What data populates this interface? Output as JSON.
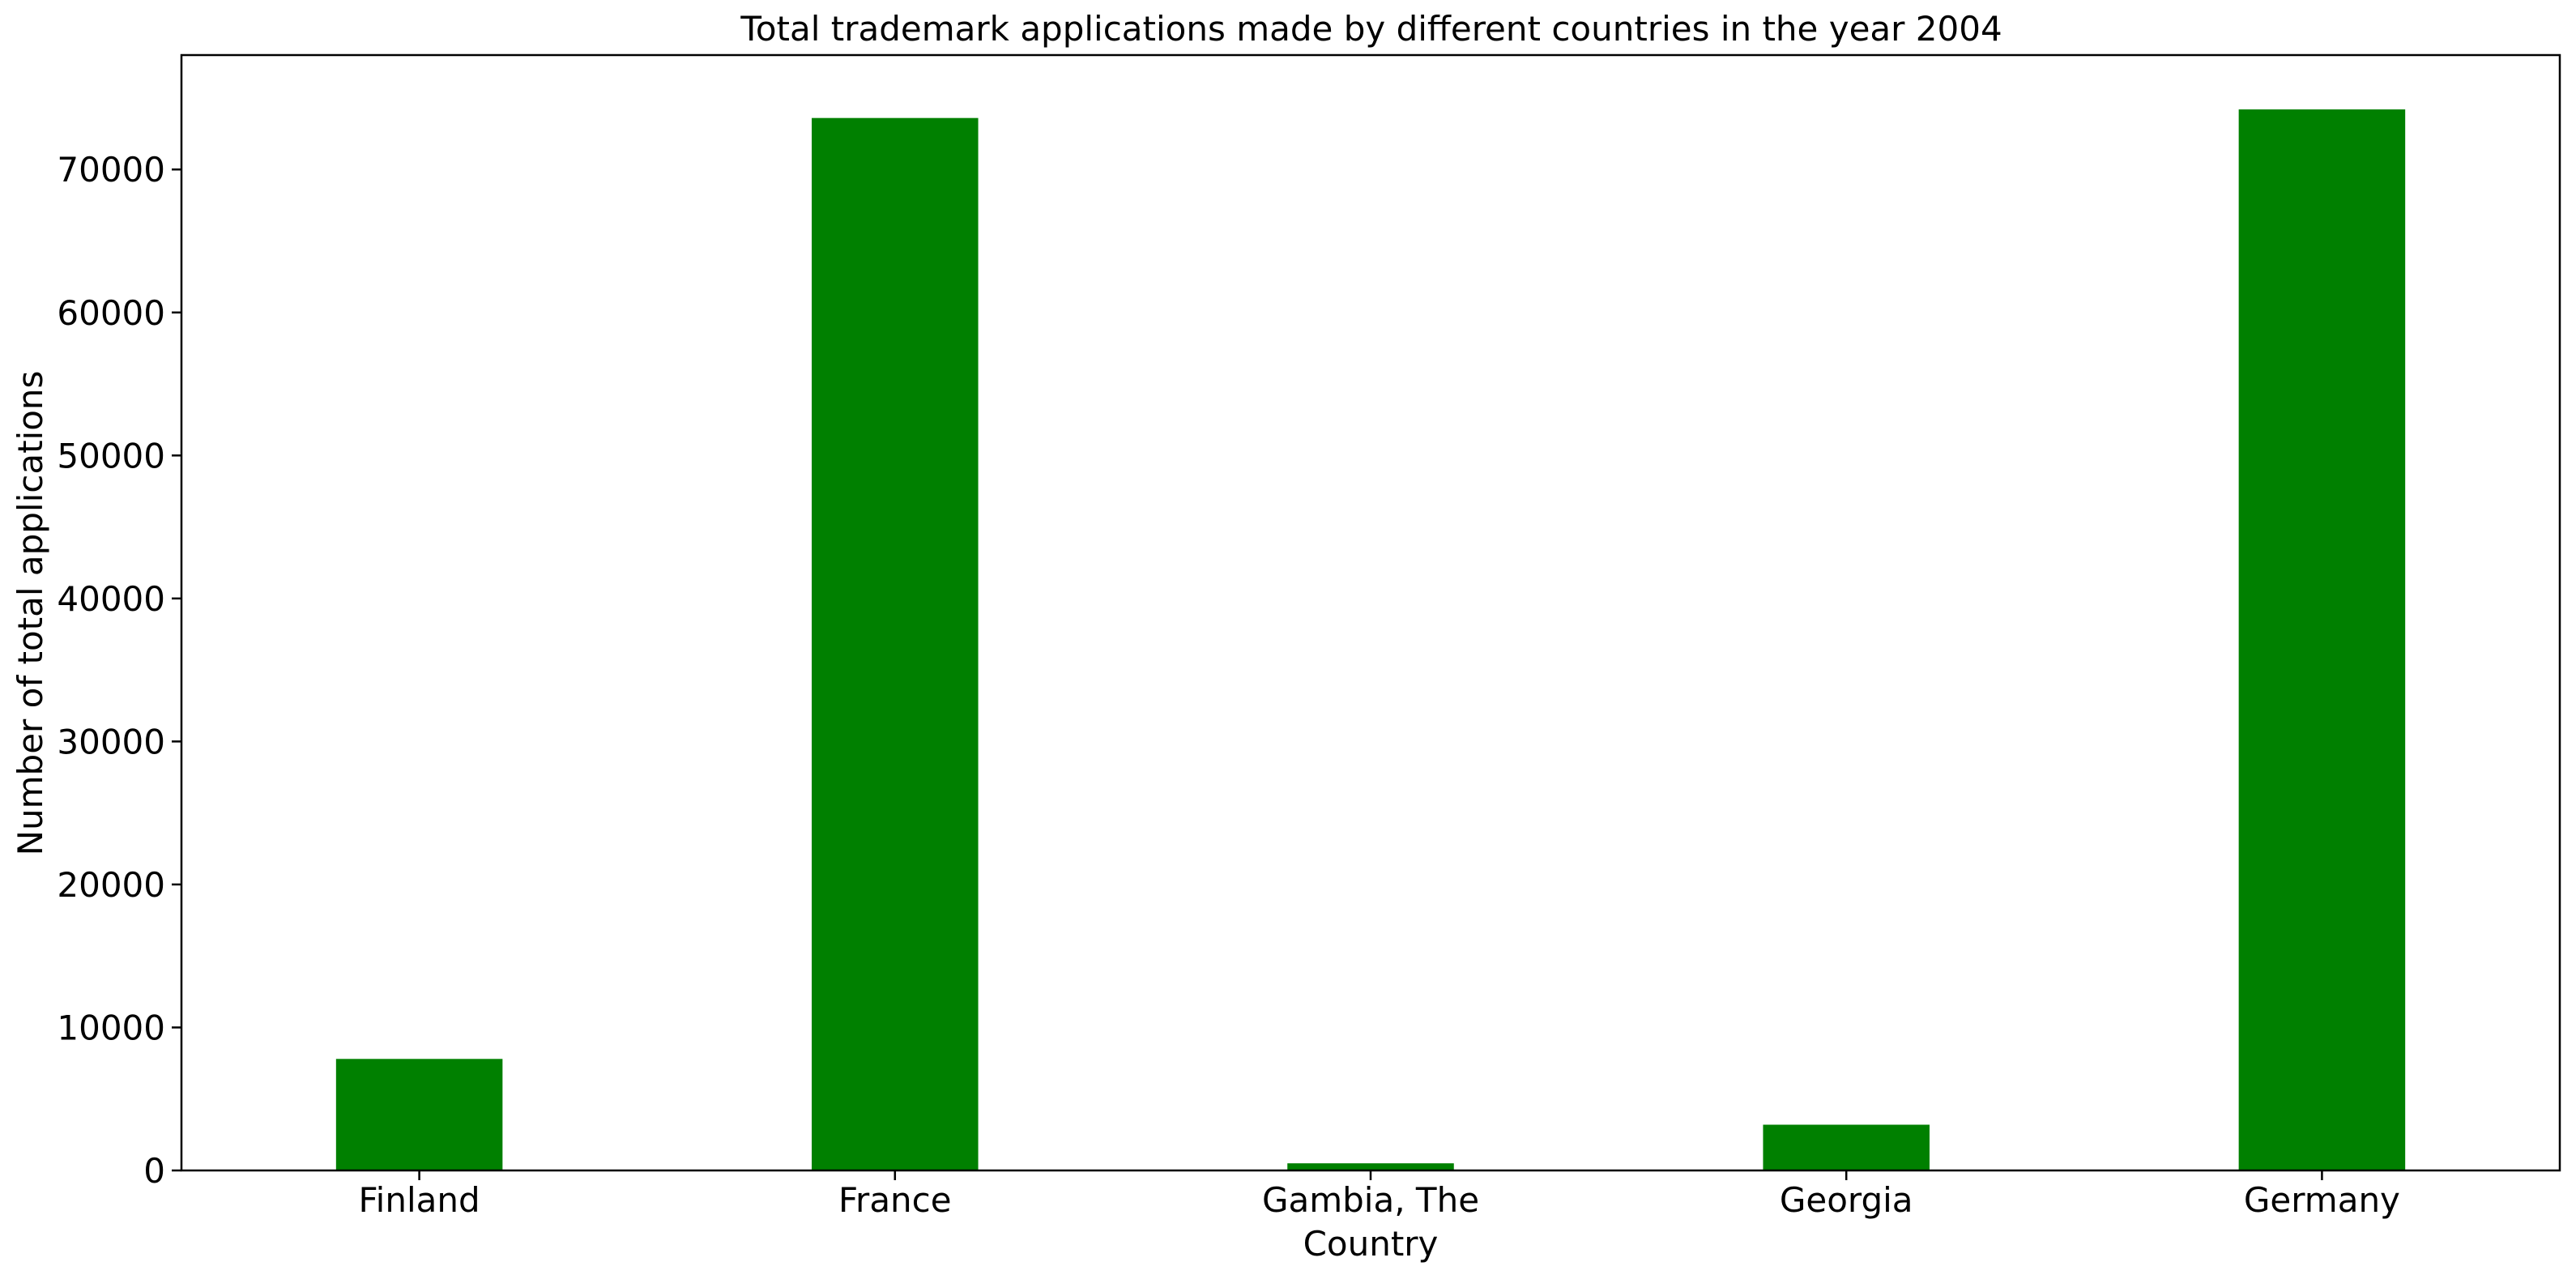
{
  "chart_data": {
    "type": "bar",
    "title": "Total trademark applications made by different countries in the year 2004",
    "xlabel": "Country",
    "ylabel": "Number of total applications",
    "categories": [
      "Finland",
      "France",
      "Gambia, The",
      "Georgia",
      "Germany"
    ],
    "values": [
      7800,
      73600,
      500,
      3200,
      74200
    ],
    "ylim": [
      0,
      78000
    ],
    "yticks": [
      0,
      10000,
      20000,
      30000,
      40000,
      50000,
      60000,
      70000
    ],
    "bar_color": "#008000",
    "grid": false,
    "legend": "none"
  }
}
